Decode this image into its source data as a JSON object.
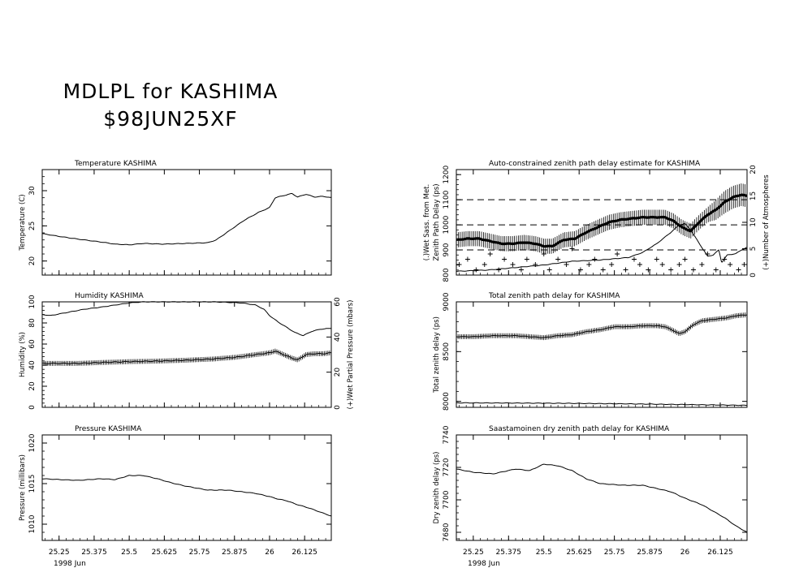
{
  "header": {
    "title": "MDLPL for KASHIMA",
    "subtitle": "$98JUN25XF"
  },
  "chart_data": [
    {
      "id": "temperature",
      "type": "line",
      "title": "Temperature   KASHIMA",
      "ylabel": "Temperature (C)",
      "xlim": [
        25.19,
        26.22
      ],
      "ylim": [
        18,
        33
      ],
      "yticks": [
        20,
        25,
        30
      ],
      "ytick_labels": [
        "20",
        "25",
        "30"
      ],
      "x_tick_labels": [],
      "series": [
        {
          "x": [
            25.19,
            25.25,
            25.32,
            25.4,
            25.45,
            25.5,
            25.55,
            25.62,
            25.7,
            25.78,
            25.81,
            25.86,
            25.91,
            25.96,
            26.0,
            26.02,
            26.05,
            26.08,
            26.1,
            26.13,
            26.16,
            26.19,
            26.22
          ],
          "y": [
            23.9,
            23.5,
            23.1,
            22.7,
            22.4,
            22.3,
            22.5,
            22.4,
            22.5,
            22.6,
            23.0,
            24.4,
            25.8,
            26.9,
            27.6,
            29.0,
            29.3,
            29.6,
            29.1,
            29.5,
            29.1,
            29.2,
            29.0
          ]
        }
      ]
    },
    {
      "id": "humidity",
      "type": "line",
      "title": "Humidity      KASHIMA",
      "ylabel": "Humidity (%)",
      "ylabel_right": "(+)Wet Partial Pressure (mbars)",
      "xlim": [
        25.19,
        26.22
      ],
      "ylim": [
        0,
        100
      ],
      "yticks": [
        0,
        20,
        40,
        60,
        80,
        100
      ],
      "ytick_labels": [
        "0",
        "20",
        "40",
        "60",
        "80",
        "100"
      ],
      "y2lim": [
        0,
        60
      ],
      "y2ticks": [
        0,
        20,
        40,
        60
      ],
      "y2tick_labels": [
        "0",
        "20",
        "40",
        "60"
      ],
      "x_tick_labels": [],
      "series": [
        {
          "name": "line",
          "x": [
            25.19,
            25.22,
            25.28,
            25.34,
            25.4,
            25.45,
            25.5,
            25.55,
            25.6,
            25.7,
            25.8,
            25.9,
            25.95,
            25.98,
            26.0,
            26.03,
            26.06,
            26.09,
            26.12,
            26.15,
            26.18,
            26.22
          ],
          "y": [
            88,
            87,
            90,
            93,
            95,
            97,
            99,
            100,
            100,
            100,
            100,
            99,
            97,
            93,
            87,
            81,
            76,
            71,
            68,
            72,
            74,
            75
          ]
        },
        {
          "name": "(+)",
          "x": [
            25.19,
            25.25,
            25.32,
            25.4,
            25.5,
            25.6,
            25.7,
            25.8,
            25.88,
            25.95,
            26.0,
            26.02,
            26.05,
            26.08,
            26.1,
            26.13,
            26.16,
            26.19,
            26.22
          ],
          "y": [
            25,
            25,
            25,
            25.5,
            26,
            26.3,
            26.8,
            27.5,
            28.5,
            30,
            31,
            32,
            30,
            28,
            27,
            30,
            30.5,
            30.5,
            31
          ]
        }
      ]
    },
    {
      "id": "pressure",
      "type": "line",
      "title": "Pressure      KASHIMA",
      "ylabel": "Pressure (millibars)",
      "xlim": [
        25.19,
        26.22
      ],
      "ylim": [
        1008,
        1021
      ],
      "yticks": [
        1010,
        1015,
        1020
      ],
      "ytick_labels": [
        "1010",
        "1015",
        "1020"
      ],
      "x_tick_labels": [
        "25.25",
        "25.375",
        "25.5",
        "25.625",
        "25.75",
        "25.875",
        "26",
        "26.125"
      ],
      "x_ticks": [
        25.25,
        25.375,
        25.5,
        25.625,
        25.75,
        25.875,
        26,
        26.125
      ],
      "xlabel": "1998 Jun",
      "series": [
        {
          "x": [
            25.19,
            25.25,
            25.32,
            25.4,
            25.45,
            25.5,
            25.55,
            25.6,
            25.65,
            25.7,
            25.78,
            25.85,
            25.9,
            25.95,
            26.0,
            26.03,
            26.06,
            26.1,
            26.14,
            26.18,
            26.22
          ],
          "y": [
            1015.6,
            1015.5,
            1015.4,
            1015.6,
            1015.5,
            1016.0,
            1016.0,
            1015.6,
            1015.1,
            1014.7,
            1014.2,
            1014.2,
            1014.0,
            1013.8,
            1013.4,
            1013.1,
            1012.9,
            1012.4,
            1012.0,
            1011.5,
            1011.0
          ]
        }
      ]
    },
    {
      "id": "autozpd",
      "type": "line",
      "title": "Auto-constrained zenith path delay estimate for KASHIMA",
      "ylabel": "Zenith Path Delay (ps)",
      "ylabel_outer": "(.)Wet Sass. from Met.",
      "ylabel_right": "(+)Number of Atmospheres",
      "xlim": [
        25.19,
        26.22
      ],
      "ylim": [
        800,
        1220
      ],
      "yticks": [
        800,
        900,
        1000,
        1100,
        1200
      ],
      "ytick_labels": [
        "800",
        "900",
        "1000",
        "1100",
        "1200"
      ],
      "y2lim": [
        0,
        20
      ],
      "y2ticks": [
        0,
        5,
        10,
        15,
        20
      ],
      "y2tick_labels": [
        "0",
        "5",
        "10",
        "15",
        "20"
      ],
      "dashed_levels": [
        900,
        1000,
        1100
      ],
      "x_tick_labels": [],
      "series": [
        {
          "name": "estimate",
          "x": [
            25.19,
            25.23,
            25.27,
            25.31,
            25.35,
            25.39,
            25.43,
            25.47,
            25.5,
            25.53,
            25.57,
            25.61,
            25.65,
            25.69,
            25.73,
            25.77,
            25.81,
            25.85,
            25.89,
            25.93,
            25.96,
            25.99,
            26.02,
            26.05,
            26.08,
            26.11,
            26.14,
            26.17,
            26.2,
            26.22
          ],
          "y": [
            940,
            945,
            945,
            935,
            925,
            925,
            930,
            925,
            915,
            915,
            940,
            945,
            970,
            990,
            1010,
            1020,
            1025,
            1030,
            1030,
            1030,
            1015,
            990,
            975,
            1010,
            1040,
            1060,
            1090,
            1110,
            1120,
            1115
          ],
          "err": [
            30,
            30,
            30,
            30,
            30,
            30,
            30,
            30,
            30,
            30,
            30,
            30,
            30,
            30,
            30,
            30,
            30,
            30,
            30,
            30,
            30,
            30,
            30,
            30,
            30,
            40,
            45,
            45,
            45,
            45
          ]
        },
        {
          "name": "(.)",
          "x": [
            25.19,
            25.3,
            25.4,
            25.5,
            25.6,
            25.7,
            25.8,
            25.85,
            25.9,
            25.95,
            25.98,
            26.0,
            26.02,
            26.04,
            26.06,
            26.08,
            26.1,
            26.12,
            26.13,
            26.15,
            26.18,
            26.2,
            26.22
          ],
          "y": [
            815,
            820,
            830,
            840,
            855,
            860,
            870,
            890,
            925,
            970,
            1000,
            1005,
            980,
            945,
            910,
            875,
            880,
            900,
            850,
            880,
            885,
            900,
            910
          ]
        },
        {
          "name": "(+)",
          "x": [
            25.2,
            25.23,
            25.26,
            25.29,
            25.31,
            25.34,
            25.36,
            25.39,
            25.42,
            25.44,
            25.47,
            25.5,
            25.52,
            25.55,
            25.58,
            25.6,
            25.63,
            25.66,
            25.68,
            25.71,
            25.74,
            25.76,
            25.79,
            25.82,
            25.84,
            25.87,
            25.9,
            25.92,
            25.95,
            25.98,
            26.0,
            26.03,
            26.06,
            26.08,
            26.11,
            26.14,
            26.16,
            26.19,
            26.21
          ],
          "y": [
            2,
            3,
            1,
            2,
            4,
            1,
            3,
            2,
            1,
            3,
            2,
            4,
            1,
            3,
            2,
            5,
            1,
            2,
            3,
            1,
            2,
            4,
            1,
            3,
            2,
            1,
            3,
            2,
            1,
            2,
            3,
            1,
            2,
            4,
            1,
            3,
            2,
            1,
            2
          ]
        }
      ]
    },
    {
      "id": "totalzpd",
      "type": "line",
      "title": "Total zenith path delay for KASHIMA",
      "ylabel": "Total zenith delay (ps)",
      "xlim": [
        25.19,
        26.22
      ],
      "ylim": [
        7940,
        9000
      ],
      "yticks": [
        8000,
        8500,
        9000
      ],
      "ytick_labels": [
        "8000",
        "8500",
        "9000"
      ],
      "x_tick_labels": [],
      "series": [
        {
          "name": "total",
          "x": [
            25.19,
            25.25,
            25.32,
            25.4,
            25.45,
            25.5,
            25.55,
            25.6,
            25.65,
            25.7,
            25.75,
            25.8,
            25.85,
            25.9,
            25.93,
            25.96,
            25.98,
            26.0,
            26.03,
            26.06,
            26.09,
            26.12,
            26.15,
            26.18,
            26.22
          ],
          "y": [
            8650,
            8650,
            8660,
            8660,
            8650,
            8640,
            8660,
            8670,
            8700,
            8720,
            8750,
            8750,
            8760,
            8760,
            8750,
            8710,
            8680,
            8700,
            8770,
            8810,
            8820,
            8830,
            8840,
            8860,
            8870
          ]
        },
        {
          "name": "dry",
          "x": [
            25.19,
            25.4,
            25.6,
            25.8,
            26.0,
            26.22
          ],
          "y": [
            7985,
            7983,
            7980,
            7975,
            7968,
            7960
          ]
        }
      ]
    },
    {
      "id": "dryzpd",
      "type": "line",
      "title": "Saastamoinen dry zenith path delay for KASHIMA",
      "ylabel": "Dry zenith delay (ps)",
      "xlim": [
        25.19,
        26.22
      ],
      "ylim": [
        7675,
        7740
      ],
      "yticks": [
        7680,
        7700,
        7720,
        7740
      ],
      "ytick_labels": [
        "7680",
        "7700",
        "7720",
        "7740"
      ],
      "x_tick_labels": [
        "25.25",
        "25.375",
        "25.5",
        "25.625",
        "25.75",
        "25.875",
        "26",
        "26.125"
      ],
      "x_ticks": [
        25.25,
        25.375,
        25.5,
        25.625,
        25.75,
        25.875,
        26,
        26.125
      ],
      "xlabel": "1998 Jun",
      "series": [
        {
          "x": [
            25.19,
            25.25,
            25.32,
            25.4,
            25.45,
            25.5,
            25.55,
            25.6,
            25.65,
            25.7,
            25.78,
            25.85,
            25.9,
            25.95,
            26.0,
            26.03,
            26.06,
            26.1,
            26.14,
            26.18,
            26.22
          ],
          "y": [
            7719,
            7717,
            7716,
            7719,
            7718,
            7722,
            7721,
            7718,
            7713,
            7710,
            7709,
            7709,
            7707,
            7705,
            7701,
            7699,
            7697,
            7693,
            7689,
            7684,
            7680
          ]
        }
      ]
    }
  ]
}
